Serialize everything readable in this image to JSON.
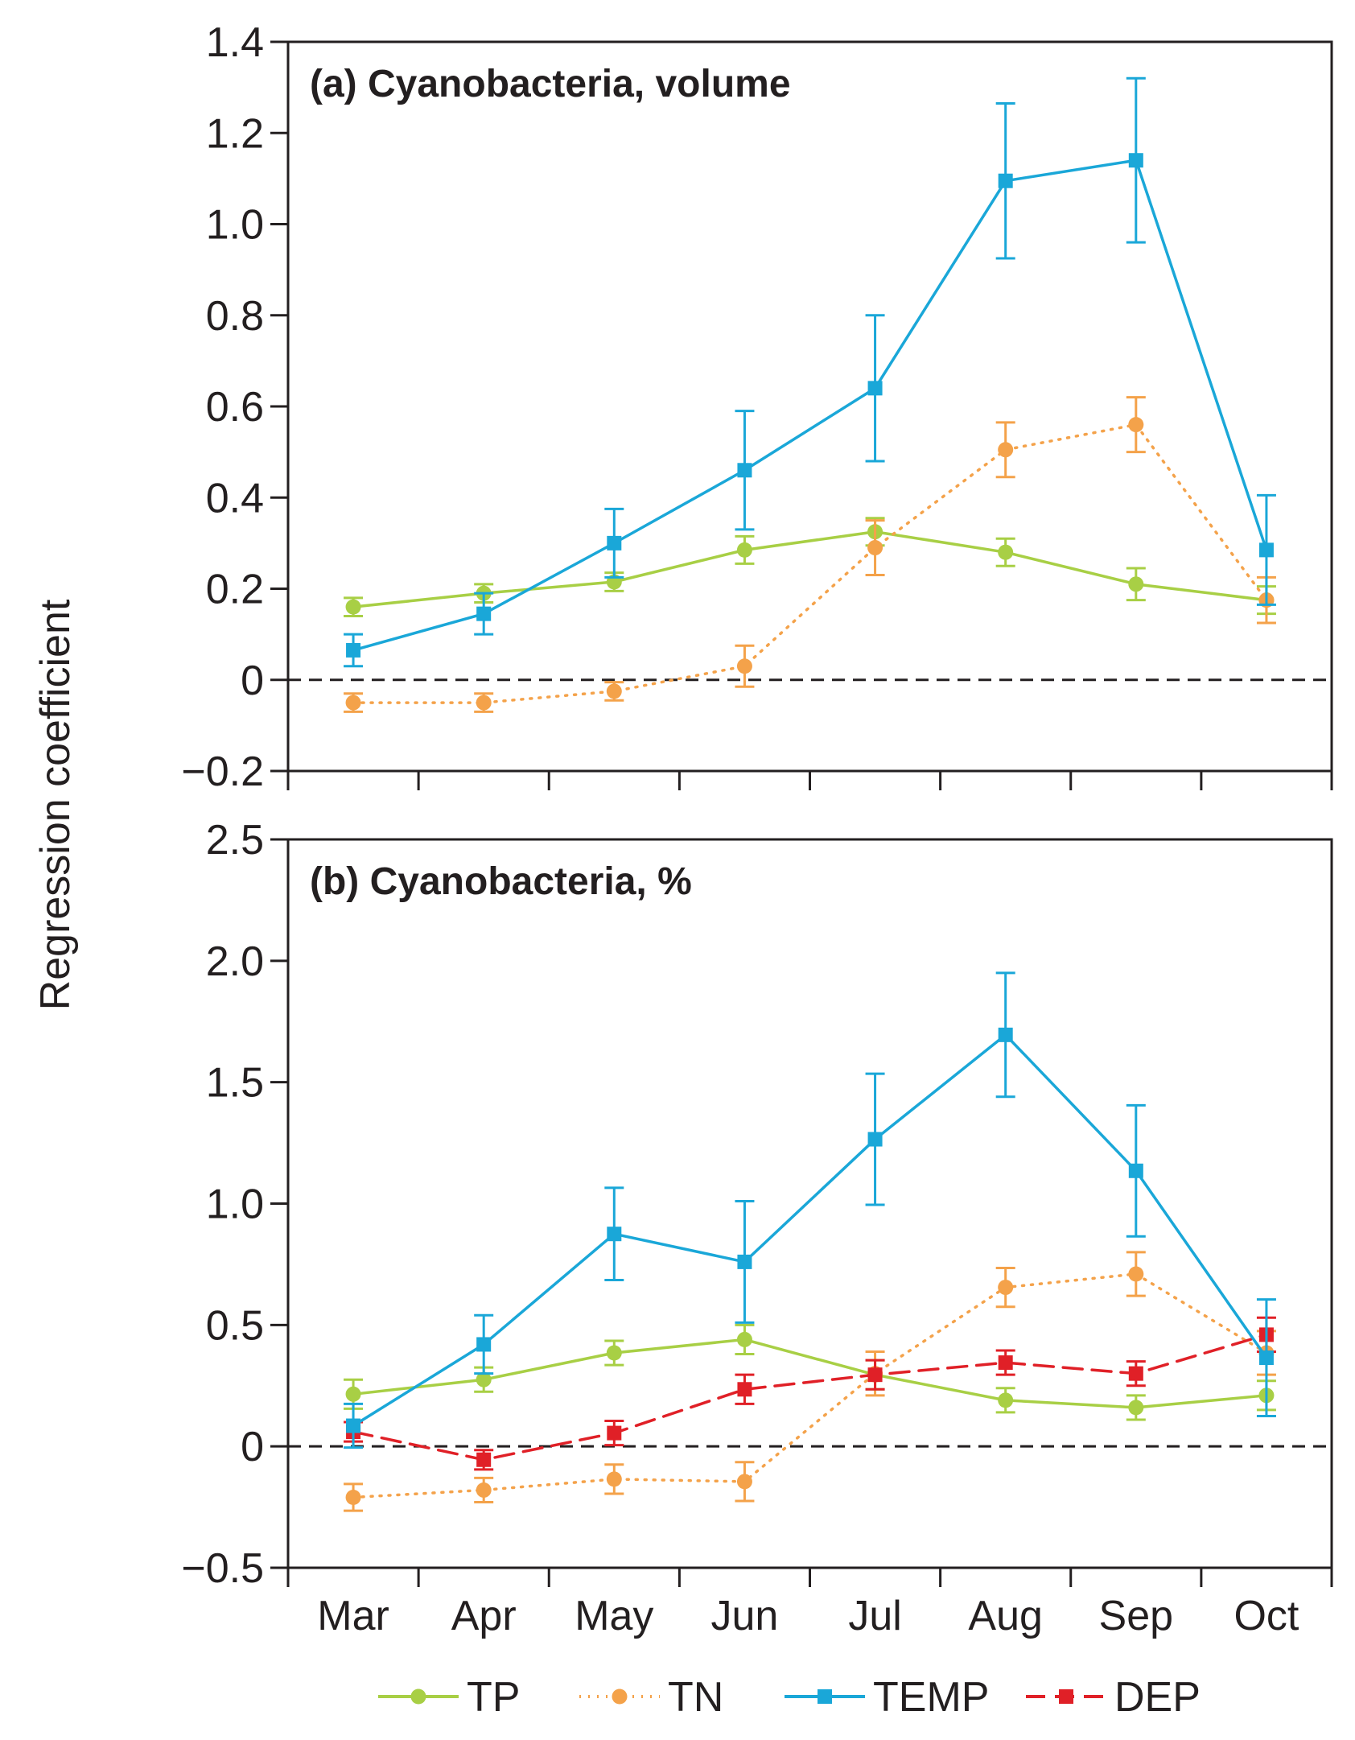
{
  "chart_data": {
    "type": "line",
    "ylabel": "Regression coefficient",
    "categories": [
      "Mar",
      "Apr",
      "May",
      "Jun",
      "Jul",
      "Aug",
      "Sep",
      "Oct"
    ],
    "series_style": [
      {
        "name": "TP",
        "color": "#a8cf45",
        "marker": "circle",
        "line": "solid"
      },
      {
        "name": "TN",
        "color": "#f4a24a",
        "marker": "circle",
        "line": "dotted"
      },
      {
        "name": "TEMP",
        "color": "#1aa7d8",
        "marker": "square",
        "line": "solid"
      },
      {
        "name": "DEP",
        "color": "#e02027",
        "marker": "square",
        "line": "dashed"
      }
    ],
    "panels": [
      {
        "title": "(a) Cyanobacteria, volume",
        "ylim": [
          -0.2,
          1.4
        ],
        "yticks": [
          -0.2,
          0,
          0.2,
          0.4,
          0.6,
          0.8,
          1.0,
          1.2,
          1.4
        ],
        "ytick_labels": [
          "−0.2",
          "0",
          "0.2",
          "0.4",
          "0.6",
          "0.8",
          "1.0",
          "1.2",
          "1.4"
        ],
        "series": [
          {
            "name": "TP",
            "values": [
              0.16,
              0.19,
              0.215,
              0.285,
              0.325,
              0.28,
              0.21,
              0.175
            ],
            "errors": [
              0.02,
              0.02,
              0.02,
              0.03,
              0.03,
              0.03,
              0.035,
              0.03
            ]
          },
          {
            "name": "TN",
            "values": [
              -0.05,
              -0.05,
              -0.025,
              0.03,
              0.29,
              0.505,
              0.56,
              0.175
            ],
            "errors": [
              0.02,
              0.02,
              0.02,
              0.045,
              0.06,
              0.06,
              0.06,
              0.05
            ]
          },
          {
            "name": "TEMP",
            "values": [
              0.065,
              0.145,
              0.3,
              0.46,
              0.64,
              1.095,
              1.14,
              0.285
            ],
            "errors": [
              0.035,
              0.045,
              0.075,
              0.13,
              0.16,
              0.17,
              0.18,
              0.12
            ]
          }
        ]
      },
      {
        "title": "(b) Cyanobacteria, %",
        "ylim": [
          -0.5,
          2.5
        ],
        "yticks": [
          -0.5,
          0,
          0.5,
          1.0,
          1.5,
          2.0,
          2.5
        ],
        "ytick_labels": [
          "−0.5",
          "0",
          "0.5",
          "1.0",
          "1.5",
          "2.0",
          "2.5"
        ],
        "series": [
          {
            "name": "TP",
            "values": [
              0.215,
              0.275,
              0.385,
              0.44,
              0.295,
              0.19,
              0.16,
              0.21
            ],
            "errors": [
              0.06,
              0.05,
              0.05,
              0.06,
              0.06,
              0.05,
              0.05,
              0.06
            ]
          },
          {
            "name": "TN",
            "values": [
              -0.21,
              -0.18,
              -0.135,
              -0.145,
              0.3,
              0.655,
              0.71,
              0.385
            ],
            "errors": [
              0.055,
              0.05,
              0.06,
              0.08,
              0.09,
              0.08,
              0.09,
              0.09
            ]
          },
          {
            "name": "TEMP",
            "values": [
              0.085,
              0.42,
              0.875,
              0.76,
              1.265,
              1.695,
              1.135,
              0.365
            ],
            "errors": [
              0.09,
              0.12,
              0.19,
              0.25,
              0.27,
              0.255,
              0.27,
              0.24
            ]
          },
          {
            "name": "DEP",
            "values": [
              0.06,
              -0.055,
              0.055,
              0.235,
              0.295,
              0.345,
              0.3,
              0.46
            ],
            "errors": [
              0.04,
              0.04,
              0.05,
              0.06,
              0.06,
              0.05,
              0.05,
              0.07
            ]
          }
        ]
      }
    ],
    "legend": [
      "TP",
      "TN",
      "TEMP",
      "DEP"
    ],
    "legend_position": "bottom-center",
    "zero_reference_line": true
  }
}
